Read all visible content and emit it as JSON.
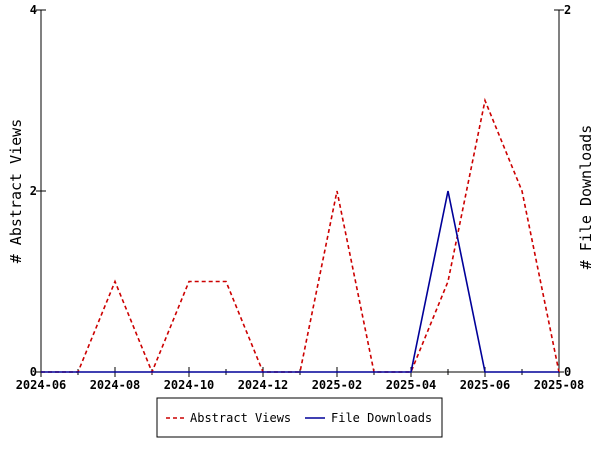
{
  "chart_data": {
    "type": "line",
    "x": [
      "2024-06",
      "2024-07",
      "2024-08",
      "2024-09",
      "2024-10",
      "2024-11",
      "2024-12",
      "2025-01",
      "2025-02",
      "2025-03",
      "2025-04",
      "2025-05",
      "2025-06",
      "2025-07",
      "2025-08"
    ],
    "x_ticks": [
      "2024-06",
      "2024-08",
      "2024-10",
      "2024-12",
      "2025-02",
      "2025-04",
      "2025-06",
      "2025-08"
    ],
    "series": [
      {
        "name": "Abstract Views",
        "axis": "left",
        "color": "#cc0000",
        "dash": "dashed",
        "values": [
          0,
          0,
          1,
          0,
          1,
          1,
          0,
          0,
          2,
          0,
          0,
          1,
          3,
          2,
          0
        ]
      },
      {
        "name": "File Downloads",
        "axis": "right",
        "color": "#000099",
        "dash": "solid",
        "values": [
          0,
          0,
          0,
          0,
          0,
          0,
          0,
          0,
          0,
          0,
          0,
          1,
          0,
          0,
          0
        ]
      }
    ],
    "ylabel": "# Abstract Views",
    "y2label": "# File Downloads",
    "ylim": [
      0,
      4
    ],
    "y2lim": [
      0,
      2
    ],
    "y_ticks": [
      0,
      2,
      4
    ],
    "y2_ticks": [
      0,
      2
    ],
    "legend_position": "bottom-center",
    "grid": false
  }
}
